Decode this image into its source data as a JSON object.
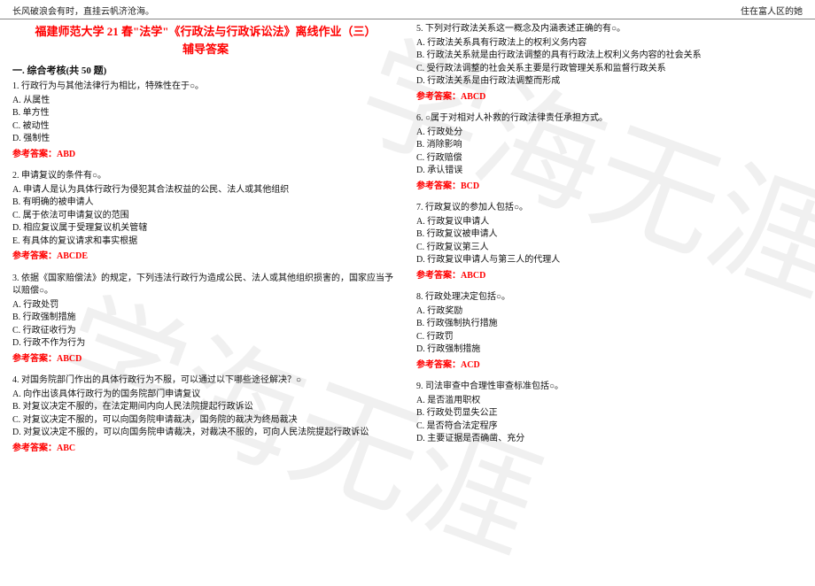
{
  "header": {
    "left": "长风破浪会有时，直挂云帆济沧海。",
    "right": "住在富人区的她"
  },
  "title_line1": "福建师范大学 21 春\"法学\"《行政法与行政诉讼法》离线作业（三）",
  "title_line2": "辅导答案",
  "section": "一. 综合考核(共 50 题)",
  "watermark_text": "学海无涯",
  "questions": [
    {
      "stem": "1. 行政行为与其他法律行为相比，特殊性在于○。",
      "opts": [
        "A. 从属性",
        "B. 单方性",
        "C. 被动性",
        "D. 强制性"
      ],
      "ans": "参考答案：ABD"
    },
    {
      "stem": "2. 申请复议的条件有○。",
      "opts": [
        "A. 申请人是认为具体行政行为侵犯其合法权益的公民、法人或其他组织",
        "B. 有明确的被申请人",
        "C. 属于依法可申请复议的范围",
        "D. 相应复议属于受理复议机关管辖",
        "E. 有具体的复议请求和事实根据"
      ],
      "ans": "参考答案：ABCDE"
    },
    {
      "stem": "3. 依据《国家赔偿法》的规定，下列违法行政行为造成公民、法人或其他组织损害的，国家应当予以赔偿○。",
      "opts": [
        "A. 行政处罚",
        "B. 行政强制措施",
        "C. 行政征收行为",
        "D. 行政不作为行为"
      ],
      "ans": "参考答案：ABCD"
    },
    {
      "stem": "4. 对国务院部门作出的具体行政行为不服，可以通过以下哪些途径解决？○",
      "opts": [
        "A. 向作出该具体行政行为的国务院部门申请复议",
        "B. 对复议决定不服的，在法定期间内向人民法院提起行政诉讼",
        "C. 对复议决定不服的，可以向国务院申请裁决，国务院的裁决为终局裁决",
        "D. 对复议决定不服的，可以向国务院申请裁决，对裁决不服的，可向人民法院提起行政诉讼"
      ],
      "ans": "参考答案：ABC"
    },
    {
      "stem": "5. 下列对行政法关系这一概念及内涵表述正确的有○。",
      "opts": [
        "A. 行政法关系具有行政法上的权利义务内容",
        "B. 行政法关系就是由行政法调整的具有行政法上权利义务内容的社会关系",
        "C. 受行政法调整的社会关系主要是行政管理关系和监督行政关系",
        "D. 行政法关系是由行政法调整而形成"
      ],
      "ans": "参考答案：ABCD"
    },
    {
      "stem": "6. ○属于对相对人补救的行政法律责任承担方式。",
      "opts": [
        "A. 行政处分",
        "B. 消除影响",
        "C. 行政赔偿",
        "D. 承认错误"
      ],
      "ans": "参考答案：BCD"
    },
    {
      "stem": "7. 行政复议的参加人包括○。",
      "opts": [
        "A. 行政复议申请人",
        "B. 行政复议被申请人",
        "C. 行政复议第三人",
        "D. 行政复议申请人与第三人的代理人"
      ],
      "ans": "参考答案：ABCD"
    },
    {
      "stem": "8. 行政处理决定包括○。",
      "opts": [
        "A. 行政奖励",
        "B. 行政强制执行措施",
        "C. 行政罚",
        "D. 行政强制措施"
      ],
      "ans": "参考答案：ACD"
    },
    {
      "stem": "9. 司法审查中合理性审查标准包括○。",
      "opts": [
        "A. 是否滥用职权",
        "B. 行政处罚显失公正",
        "C. 是否符合法定程序",
        "D. 主要证据是否确凿、充分"
      ],
      "ans": ""
    }
  ]
}
